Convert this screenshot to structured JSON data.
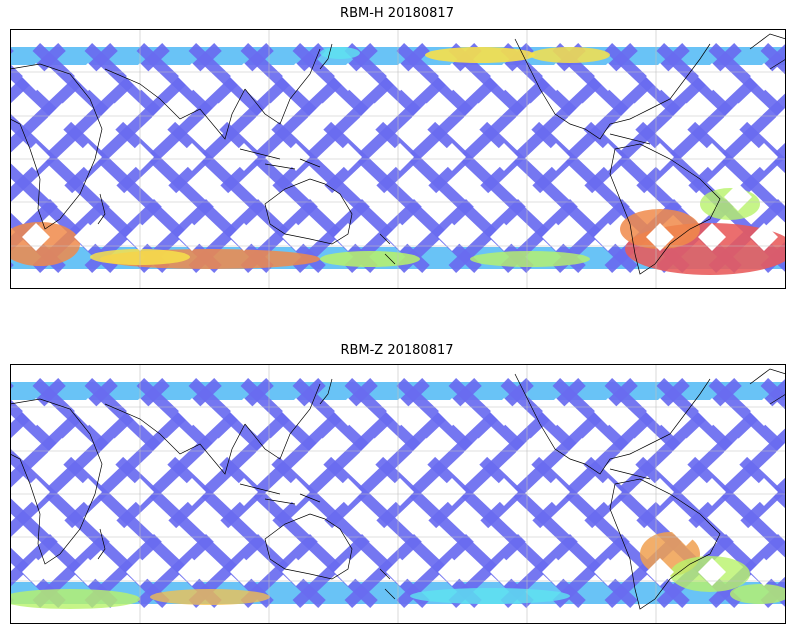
{
  "panels": [
    {
      "title": "RBM-H 20180817",
      "colors": {
        "base": "#6a6cf0",
        "low_mid": "#4fb8f5",
        "mid": "#5ee4f0",
        "high_mid": "#b8f26a",
        "high": "#f7e04a",
        "peak": "#f08a4a",
        "max": "#e85a5a"
      },
      "hotspots": [
        "south-atlantic-red",
        "southern-ocean-band",
        "north-pacific-yellow",
        "north-atlantic-yellow"
      ]
    },
    {
      "title": "RBM-Z 20180817",
      "colors": {
        "base": "#6a6cf0",
        "low_mid": "#4fb8f5",
        "mid": "#5ee4f0",
        "high_mid": "#b8f26a",
        "high": "#f7c24a",
        "peak": "#f0a050",
        "max": "#e8c048"
      },
      "hotspots": [
        "south-atlantic-orange",
        "southern-ocean-cyan"
      ]
    }
  ],
  "map": {
    "projection": "plate-carree",
    "gridlines": true,
    "coastlines": true
  }
}
